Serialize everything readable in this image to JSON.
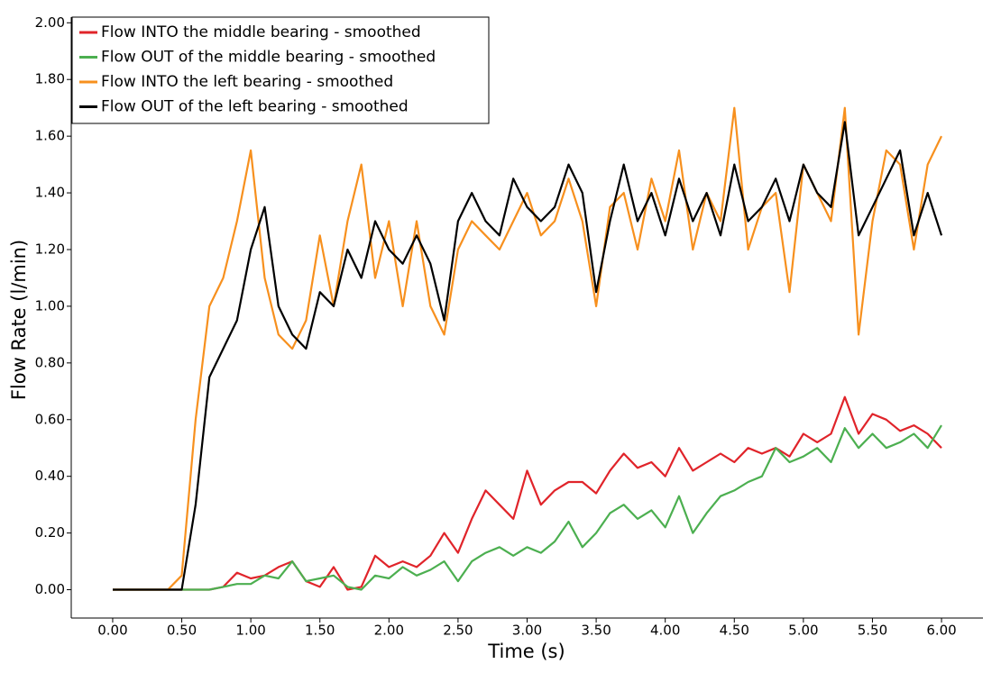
{
  "chart_data": {
    "type": "line",
    "xlabel": "Time (s)",
    "ylabel": "Flow Rate (l/min)",
    "x": [
      0,
      0.1,
      0.2,
      0.3,
      0.4,
      0.5,
      0.6,
      0.7,
      0.8,
      0.9,
      1.0,
      1.1,
      1.2,
      1.3,
      1.4,
      1.5,
      1.6,
      1.7,
      1.8,
      1.9,
      2.0,
      2.1,
      2.2,
      2.3,
      2.4,
      2.5,
      2.6,
      2.7,
      2.8,
      2.9,
      3.0,
      3.1,
      3.2,
      3.3,
      3.4,
      3.5,
      3.6,
      3.7,
      3.8,
      3.9,
      4.0,
      4.1,
      4.2,
      4.3,
      4.4,
      4.5,
      4.6,
      4.7,
      4.8,
      4.9,
      5.0,
      5.1,
      5.2,
      5.3,
      5.4,
      5.5,
      5.6,
      5.7,
      5.8,
      5.9,
      6.0
    ],
    "series": [
      {
        "name": "Flow INTO the middle bearing -  smoothed",
        "color": "#e0242a",
        "values": [
          0,
          0,
          0,
          0,
          0,
          0,
          0,
          0,
          0.01,
          0.06,
          0.04,
          0.05,
          0.08,
          0.1,
          0.03,
          0.01,
          0.08,
          0,
          0.01,
          0.12,
          0.08,
          0.1,
          0.08,
          0.12,
          0.2,
          0.13,
          0.25,
          0.35,
          0.3,
          0.25,
          0.42,
          0.3,
          0.35,
          0.38,
          0.38,
          0.34,
          0.42,
          0.48,
          0.43,
          0.45,
          0.4,
          0.5,
          0.42,
          0.45,
          0.48,
          0.45,
          0.5,
          0.48,
          0.5,
          0.47,
          0.55,
          0.52,
          0.55,
          0.68,
          0.55,
          0.62,
          0.6,
          0.56,
          0.58,
          0.55,
          0.5
        ]
      },
      {
        "name": "Flow OUT of the middle bearing -  smoothed",
        "color": "#4caf50",
        "values": [
          0,
          0,
          0,
          0,
          0,
          0,
          0,
          0,
          0.01,
          0.02,
          0.02,
          0.05,
          0.04,
          0.1,
          0.03,
          0.04,
          0.05,
          0.01,
          0,
          0.05,
          0.04,
          0.08,
          0.05,
          0.07,
          0.1,
          0.03,
          0.1,
          0.13,
          0.15,
          0.12,
          0.15,
          0.13,
          0.17,
          0.24,
          0.15,
          0.2,
          0.27,
          0.3,
          0.25,
          0.28,
          0.22,
          0.33,
          0.2,
          0.27,
          0.33,
          0.35,
          0.38,
          0.4,
          0.5,
          0.45,
          0.47,
          0.5,
          0.45,
          0.57,
          0.5,
          0.55,
          0.5,
          0.52,
          0.55,
          0.5,
          0.58
        ]
      },
      {
        "name": "Flow INTO the left bearing -  smoothed",
        "color": "#f7901e",
        "values": [
          0,
          0,
          0,
          0,
          0,
          0.05,
          0.6,
          1.0,
          1.1,
          1.3,
          1.55,
          1.1,
          0.9,
          0.85,
          0.95,
          1.25,
          1.0,
          1.3,
          1.5,
          1.1,
          1.3,
          1.0,
          1.3,
          1.0,
          0.9,
          1.2,
          1.3,
          1.25,
          1.2,
          1.3,
          1.4,
          1.25,
          1.3,
          1.45,
          1.3,
          1.0,
          1.35,
          1.4,
          1.2,
          1.45,
          1.3,
          1.55,
          1.2,
          1.4,
          1.3,
          1.7,
          1.2,
          1.35,
          1.4,
          1.05,
          1.5,
          1.4,
          1.3,
          1.7,
          0.9,
          1.3,
          1.55,
          1.5,
          1.2,
          1.5,
          1.6
        ]
      },
      {
        "name": "Flow OUT of the left bearing -  smoothed",
        "color": "#000000",
        "values": [
          0,
          0,
          0,
          0,
          0,
          0,
          0.3,
          0.75,
          0.85,
          0.95,
          1.2,
          1.35,
          1.0,
          0.9,
          0.85,
          1.05,
          1.0,
          1.2,
          1.1,
          1.3,
          1.2,
          1.15,
          1.25,
          1.15,
          0.95,
          1.3,
          1.4,
          1.3,
          1.25,
          1.45,
          1.35,
          1.3,
          1.35,
          1.5,
          1.4,
          1.05,
          1.3,
          1.5,
          1.3,
          1.4,
          1.25,
          1.45,
          1.3,
          1.4,
          1.25,
          1.5,
          1.3,
          1.35,
          1.45,
          1.3,
          1.5,
          1.4,
          1.35,
          1.65,
          1.25,
          1.35,
          1.45,
          1.55,
          1.25,
          1.4,
          1.25
        ]
      }
    ],
    "xlim": [
      -0.3,
      6.3
    ],
    "xticks": [
      {
        "value": 0,
        "label": "0.00"
      },
      {
        "value": 0.5,
        "label": "0.50"
      },
      {
        "value": 1,
        "label": "1.00"
      },
      {
        "value": 1.5,
        "label": "1.50"
      },
      {
        "value": 2,
        "label": "2.00"
      },
      {
        "value": 2.5,
        "label": "2.50"
      },
      {
        "value": 3,
        "label": "3.00"
      },
      {
        "value": 3.5,
        "label": "3.50"
      },
      {
        "value": 4,
        "label": "4.00"
      },
      {
        "value": 4.5,
        "label": "4.50"
      },
      {
        "value": 5,
        "label": "5.00"
      },
      {
        "value": 5.5,
        "label": "5.50"
      },
      {
        "value": 6,
        "label": "6.00"
      }
    ],
    "ylim": [
      -0.1,
      2.02
    ],
    "yticks": [
      {
        "value": 0,
        "label": "0.00"
      },
      {
        "value": 0.2,
        "label": "0.20"
      },
      {
        "value": 0.4,
        "label": "0.40"
      },
      {
        "value": 0.6,
        "label": "0.60"
      },
      {
        "value": 0.8,
        "label": "0.80"
      },
      {
        "value": 1,
        "label": "1.00"
      },
      {
        "value": 1.2,
        "label": "1.20"
      },
      {
        "value": 1.4,
        "label": "1.40"
      },
      {
        "value": 1.6,
        "label": "1.60"
      },
      {
        "value": 1.8,
        "label": "1.80"
      },
      {
        "value": 2,
        "label": "2.00"
      }
    ],
    "grid": false,
    "legend": "upper left"
  }
}
